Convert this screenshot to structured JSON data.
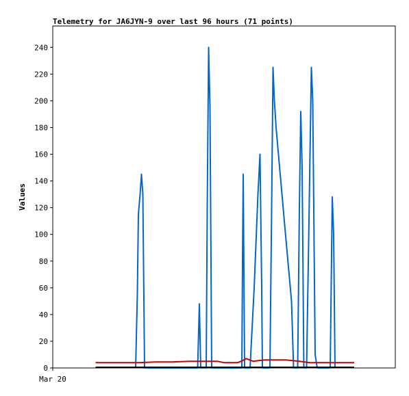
{
  "chart_data": {
    "type": "line",
    "title": "Telemetry for JA6JYN-9 over last 96 hours (71 points)",
    "xlabel": "",
    "ylabel": "Values",
    "x_tick_labels": [
      "Mar 20"
    ],
    "y_ticks": [
      0,
      20,
      40,
      60,
      80,
      100,
      120,
      140,
      160,
      180,
      200,
      220,
      240
    ],
    "ylim": [
      0,
      256
    ],
    "xlim": [
      0,
      100
    ],
    "grid": false,
    "legend": "none",
    "series": [
      {
        "color": "#0066cc",
        "x": [
          24.2,
          24.7,
          25.0,
          25.5,
          25.9,
          26.3,
          26.8,
          27.2,
          42.3,
          42.8,
          43.2,
          44.8,
          45.1,
          45.5,
          45.9,
          46.4,
          46.8,
          55.2,
          55.4,
          55.6,
          56.0,
          56.4,
          57.6,
          58.8,
          59.9,
          60.5,
          61.0,
          61.2,
          63.4,
          63.9,
          64.3,
          64.7,
          65.2,
          67.6,
          69.7,
          70.3,
          71.5,
          72.0,
          72.4,
          72.8,
          73.3,
          74.1,
          74.8,
          75.1,
          75.5,
          75.9,
          76.6,
          77.2,
          77.6,
          78.1,
          81.0,
          81.4,
          81.6,
          82.0,
          82.4
        ],
        "values": [
          0,
          56,
          115,
          130,
          145,
          130,
          0,
          0,
          0,
          48,
          0,
          0,
          120,
          240,
          195,
          0,
          0,
          0,
          80,
          145,
          0,
          0,
          0,
          60,
          130,
          160,
          60,
          0,
          0,
          120,
          225,
          200,
          180,
          110,
          50,
          0,
          0,
          120,
          192,
          150,
          0,
          0,
          110,
          160,
          225,
          200,
          10,
          0,
          0,
          0,
          0,
          85,
          128,
          100,
          0
        ]
      },
      {
        "color": "#cc0000",
        "x": [
          12.5,
          25.0,
          30.0,
          35.0,
          40.0,
          45.0,
          48.0,
          49.0,
          50.0,
          52.0,
          54.0,
          55.0,
          56.5,
          57.5,
          58.5,
          60.0,
          62.0,
          64.0,
          66.0,
          68.0,
          70.0,
          72.0,
          75.0,
          80.0,
          85.0,
          88.0
        ],
        "values": [
          4,
          4,
          4.5,
          4.5,
          5,
          5,
          5,
          4.5,
          4,
          4,
          4,
          5,
          7,
          6,
          5,
          5.5,
          6,
          6,
          6,
          6,
          5.5,
          5,
          4,
          4,
          4,
          4
        ]
      },
      {
        "color": "#000000",
        "x": [
          12.5,
          88.0
        ],
        "values": [
          0.5,
          0.5
        ]
      }
    ]
  }
}
